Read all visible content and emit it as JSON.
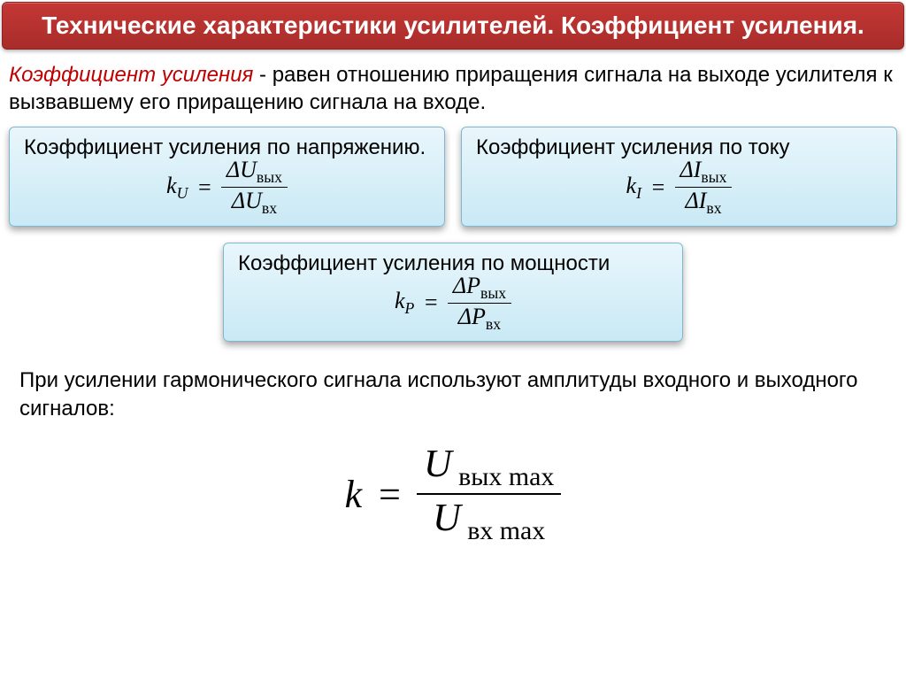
{
  "header": {
    "title": "Технические характеристики усилителей. Коэффициент усиления."
  },
  "definition": {
    "term": "Коэффициент усиления",
    "text": " - равен отношению  приращения сигнала на выходе усилителя к вызвавшему его приращению сигнала на входе."
  },
  "boxes": {
    "voltage": {
      "label": "Коэффициент усиления по напряжению.",
      "symbol": "k",
      "subscript": "U",
      "num_sym": "ΔU",
      "num_sub": "вых",
      "den_sym": "ΔU",
      "den_sub": "вх"
    },
    "current": {
      "label": "Коэффициент усиления по току",
      "symbol": "k",
      "subscript": "I",
      "num_sym": "ΔI",
      "num_sub": "вых",
      "den_sym": "ΔI",
      "den_sub": "вх"
    },
    "power": {
      "label": "Коэффициент усиления по мощности",
      "symbol": "k",
      "subscript": "P",
      "num_sym": "ΔP",
      "num_sub": "вых",
      "den_sym": "ΔP",
      "den_sub": "вх"
    }
  },
  "note": {
    "text": "При усилении гармонического сигнала используют амплитуды входного и выходного сигналов:"
  },
  "main_formula": {
    "symbol": "k",
    "num_sym": "U",
    "num_sub": "вых max",
    "den_sym": "U",
    "den_sub": "вх max"
  },
  "style": {
    "header_bg_top": "#c43835",
    "header_bg_bottom": "#a82c2a",
    "header_text": "#ffffff",
    "box_bg_top": "#e9f6fc",
    "box_bg_bottom": "#c9e9f5",
    "box_border": "#7fb7cf",
    "term_color": "#c00000",
    "body_text": "#000000",
    "body_bg": "#ffffff",
    "header_fontsize": 28,
    "body_fontsize": 24,
    "big_formula_fontsize": 44
  }
}
